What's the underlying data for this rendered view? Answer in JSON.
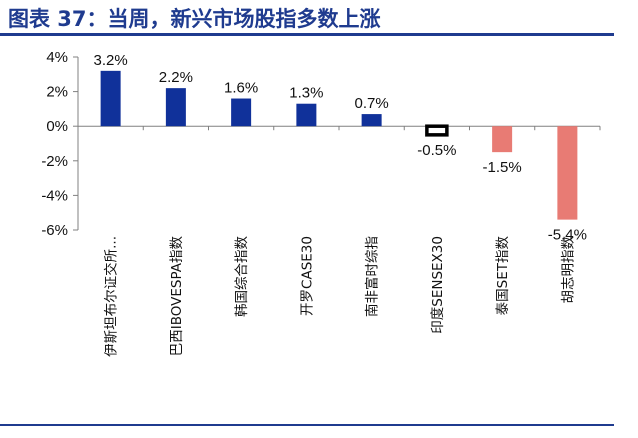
{
  "figure": {
    "title": "图表 37：当周，新兴市场股指多数上涨"
  },
  "chart_data": {
    "type": "bar",
    "title": "",
    "xlabel": "",
    "ylabel": "",
    "categories": [
      "伊斯坦布尔证交所...",
      "巴西IBOVESPA指数",
      "韩国综合指数",
      "开罗CASE30",
      "南非富时综指",
      "印度SENSEX30",
      "泰国SET指数",
      "胡志明指数"
    ],
    "values": [
      3.2,
      2.2,
      1.6,
      1.3,
      0.7,
      -0.5,
      -1.5,
      -5.4
    ],
    "data_labels": [
      "3.2%",
      "2.2%",
      "1.6%",
      "1.3%",
      "0.7%",
      "-0.5%",
      "-1.5%",
      "-5.4%"
    ],
    "ylim": [
      -6,
      4
    ],
    "yticks": [
      4,
      2,
      0,
      -2,
      -4,
      -6
    ],
    "ytick_labels": [
      "4%",
      "2%",
      "0%",
      "-2%",
      "-4%",
      "-6%"
    ],
    "grid": false,
    "legend": "none",
    "colors": {
      "positive": "#10319a",
      "negative": "#e87b74",
      "highlight_outline": "#000000",
      "highlight_fill": "#ffffff",
      "axis": "#808080",
      "title": "#1f3b8f"
    },
    "highlight_index": 5
  }
}
